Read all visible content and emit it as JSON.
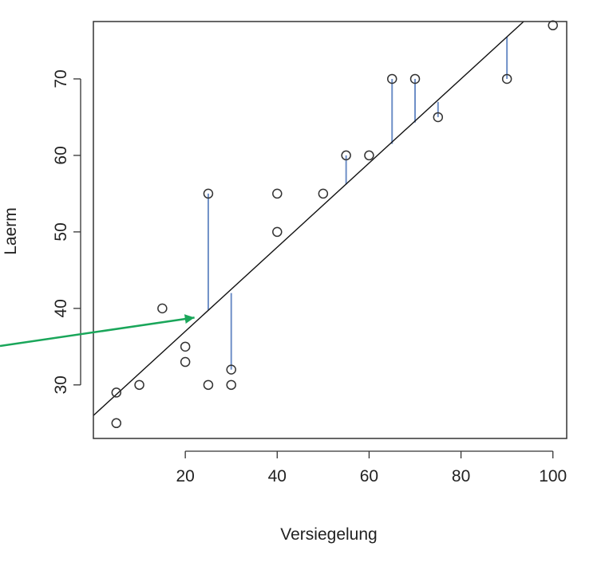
{
  "chart_data": {
    "type": "scatter",
    "title": "",
    "xlabel": "Versiegelung",
    "ylabel": "Laerm",
    "xlim": [
      0,
      103
    ],
    "ylim": [
      23,
      77.5
    ],
    "xticks": [
      20,
      40,
      60,
      80,
      100
    ],
    "yticks": [
      30,
      40,
      50,
      60,
      70
    ],
    "grid": false,
    "points": [
      {
        "x": 5,
        "y": 29
      },
      {
        "x": 5,
        "y": 25
      },
      {
        "x": 10,
        "y": 30
      },
      {
        "x": 15,
        "y": 40
      },
      {
        "x": 20,
        "y": 35
      },
      {
        "x": 20,
        "y": 33
      },
      {
        "x": 25,
        "y": 55
      },
      {
        "x": 25,
        "y": 30
      },
      {
        "x": 30,
        "y": 32
      },
      {
        "x": 30,
        "y": 30
      },
      {
        "x": 40,
        "y": 55
      },
      {
        "x": 40,
        "y": 50
      },
      {
        "x": 50,
        "y": 55
      },
      {
        "x": 55,
        "y": 60
      },
      {
        "x": 60,
        "y": 60
      },
      {
        "x": 65,
        "y": 70
      },
      {
        "x": 70,
        "y": 70
      },
      {
        "x": 75,
        "y": 65
      },
      {
        "x": 90,
        "y": 70
      },
      {
        "x": 100,
        "y": 77
      }
    ],
    "regression_line": {
      "intercept": 26.0,
      "slope": 0.55
    },
    "residual_segments": [
      {
        "x": 25,
        "y_from": 39.8,
        "y_to": 55
      },
      {
        "x": 30,
        "y_from": 42.0,
        "y_to": 32
      },
      {
        "x": 55,
        "y_from": 56.2,
        "y_to": 60
      },
      {
        "x": 65,
        "y_from": 61.5,
        "y_to": 70
      },
      {
        "x": 70,
        "y_from": 64.3,
        "y_to": 70
      },
      {
        "x": 75,
        "y_from": 67.0,
        "y_to": 65
      },
      {
        "x": 90,
        "y_from": 75.5,
        "y_to": 70
      }
    ],
    "annotation_arrow": {
      "x": 22,
      "y": 38.8
    },
    "colors": {
      "points": "#333333",
      "line": "#111111",
      "residuals": "#6e8fc7",
      "arrow": "#1aa65a",
      "frame": "#333333"
    }
  }
}
